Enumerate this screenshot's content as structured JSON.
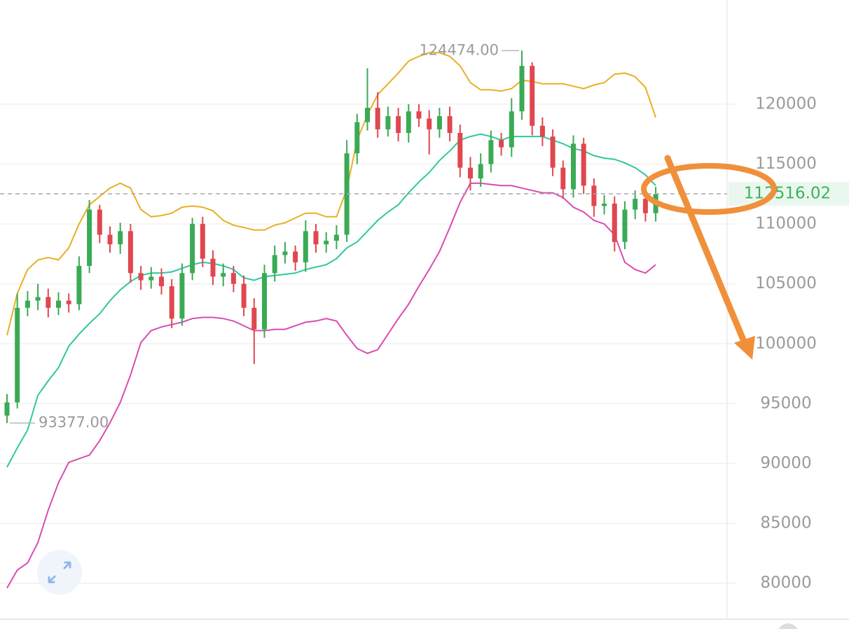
{
  "chart_data": {
    "type": "candlestick",
    "ylim": [
      77000,
      128700
    ],
    "yticks": [
      80000,
      85000,
      90000,
      95000,
      100000,
      105000,
      110000,
      115000,
      120000
    ],
    "grid": true,
    "up_color": "#3aaa55",
    "down_color": "#e0474f",
    "open": [
      94000,
      95100,
      103000,
      103600,
      103900,
      103000,
      103600,
      103300,
      106500,
      111200,
      109100,
      108300,
      109400,
      105900,
      105300,
      105600,
      104800,
      102100,
      105900,
      110000,
      107100,
      105600,
      105900,
      105000,
      103000,
      101200,
      105900,
      107400,
      107700,
      106800,
      109400,
      108300,
      108600,
      109100,
      115900,
      118500,
      119700,
      117900,
      119000,
      117600,
      119400,
      118800,
      117900,
      119000,
      117600,
      114700,
      113800,
      115000,
      117000,
      116400,
      119400,
      123200,
      118200,
      117300,
      114700,
      112900,
      116700,
      113200,
      111500,
      111700,
      108500,
      111200,
      112100,
      110900
    ],
    "high": [
      95800,
      104200,
      104400,
      105000,
      104600,
      104300,
      104200,
      107300,
      112000,
      111600,
      109800,
      110100,
      110000,
      106500,
      106400,
      106300,
      105400,
      106700,
      110500,
      110600,
      107800,
      106700,
      106500,
      105700,
      103800,
      106600,
      108200,
      108500,
      108200,
      110300,
      110000,
      109300,
      109900,
      117000,
      119200,
      123000,
      121000,
      119800,
      119700,
      120000,
      120000,
      119500,
      119700,
      119800,
      118300,
      115600,
      115900,
      117800,
      117600,
      120500,
      124474,
      123500,
      118900,
      117900,
      115300,
      117400,
      117200,
      113800,
      112400,
      112300,
      111900,
      112800,
      113000,
      113100
    ],
    "low": [
      93377,
      94600,
      102300,
      102800,
      102200,
      102400,
      102600,
      102800,
      105900,
      108400,
      107600,
      107500,
      105100,
      104500,
      104600,
      104100,
      101300,
      101500,
      105300,
      106400,
      104900,
      104800,
      104300,
      102300,
      98300,
      100500,
      105200,
      106700,
      106100,
      106000,
      107600,
      107600,
      107900,
      108500,
      115000,
      117800,
      117200,
      117300,
      116900,
      116800,
      118100,
      115800,
      117200,
      116900,
      113900,
      112800,
      113100,
      114300,
      115700,
      115600,
      118700,
      117400,
      116500,
      114000,
      112100,
      112200,
      112500,
      110600,
      110800,
      107700,
      107900,
      110400,
      110200,
      110200
    ],
    "close": [
      95100,
      103000,
      103600,
      103900,
      103000,
      103600,
      103300,
      106500,
      111200,
      109100,
      108300,
      109400,
      105900,
      105300,
      105600,
      104800,
      102100,
      105900,
      110000,
      107100,
      105600,
      105900,
      105000,
      103000,
      101200,
      105900,
      107400,
      107700,
      106800,
      109400,
      108300,
      108600,
      109100,
      115900,
      118500,
      119700,
      117900,
      119000,
      117600,
      119400,
      118800,
      117900,
      119000,
      117600,
      114700,
      113800,
      115000,
      117000,
      116400,
      119400,
      123200,
      118200,
      117300,
      114700,
      112900,
      116700,
      113200,
      111500,
      111700,
      108500,
      111200,
      112100,
      110900,
      112500
    ],
    "bollinger": {
      "upper_color": "#e8b023",
      "middle_color": "#2fc7a0",
      "lower_color": "#d94cb0",
      "upper": [
        100700,
        104200,
        106200,
        107000,
        107200,
        107000,
        108000,
        110000,
        111600,
        112300,
        113000,
        113400,
        113000,
        111200,
        110600,
        110700,
        110900,
        111400,
        111500,
        111400,
        111100,
        110300,
        109900,
        109700,
        109500,
        109500,
        109900,
        110100,
        110500,
        110900,
        110900,
        110600,
        110600,
        112900,
        117000,
        119100,
        120800,
        121700,
        122600,
        123600,
        124000,
        124300,
        124300,
        124000,
        123200,
        121800,
        121200,
        121200,
        121100,
        121300,
        122000,
        121900,
        121700,
        121700,
        121700,
        121500,
        121300,
        121600,
        121800,
        122500,
        122600,
        122300,
        121400,
        118900
      ],
      "middle": [
        89700,
        91300,
        92800,
        95700,
        96900,
        98000,
        99800,
        100800,
        101700,
        102500,
        103600,
        104500,
        105200,
        105700,
        105900,
        105900,
        106000,
        106300,
        106600,
        106800,
        106700,
        106500,
        106200,
        105500,
        105300,
        105600,
        105700,
        105800,
        105900,
        106200,
        106400,
        106600,
        107100,
        108000,
        108500,
        109400,
        110300,
        111000,
        111600,
        112600,
        113500,
        114300,
        115300,
        116100,
        117000,
        117300,
        117500,
        117300,
        117000,
        117300,
        117300,
        117300,
        117300,
        117000,
        116700,
        116300,
        116100,
        115700,
        115500,
        115400,
        115100,
        114700,
        114100,
        113200
      ],
      "lower": [
        79600,
        81100,
        81700,
        83400,
        86100,
        88400,
        90100,
        90400,
        90700,
        91900,
        93400,
        95100,
        97400,
        100100,
        101100,
        101400,
        101600,
        101800,
        102100,
        102200,
        102200,
        102100,
        101900,
        101500,
        101100,
        101100,
        101200,
        101200,
        101500,
        101800,
        101900,
        102100,
        101900,
        100700,
        99600,
        99200,
        99500,
        100800,
        102100,
        103300,
        104800,
        106200,
        107700,
        109700,
        111800,
        113400,
        113400,
        113300,
        113200,
        113200,
        113000,
        112800,
        112600,
        112600,
        112200,
        111400,
        111000,
        110300,
        110000,
        109100,
        106800,
        106200,
        105900,
        106600
      ]
    },
    "high_marker": {
      "value": 124474,
      "label": "124474.00"
    },
    "low_marker": {
      "value": 93377,
      "label": "93377.00"
    },
    "last_price": {
      "value": 112516.02,
      "label": "112516.02"
    }
  }
}
